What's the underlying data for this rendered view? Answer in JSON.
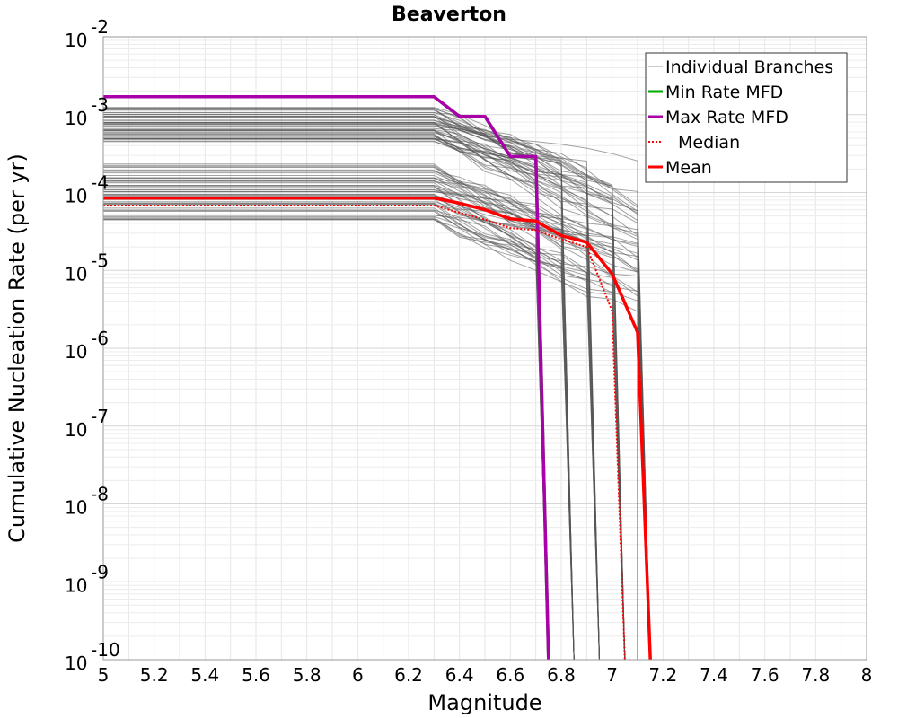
{
  "chart_data": {
    "type": "line",
    "title": "Beaverton",
    "xlabel": "Magnitude",
    "ylabel": "Cumulative Nucleation Rate (per yr)",
    "xlim": [
      5,
      8
    ],
    "ylim": [
      1e-10,
      0.01
    ],
    "yscale": "log",
    "grid": true,
    "legend_position": "top-right",
    "x_ticks": [
      "5",
      "5.2",
      "5.4",
      "5.6",
      "5.8",
      "6",
      "6.2",
      "6.4",
      "6.6",
      "6.8",
      "7",
      "7.2",
      "7.4",
      "7.6",
      "7.8",
      "8"
    ],
    "y_ticks": [
      {
        "base": "10",
        "exp": "-10"
      },
      {
        "base": "10",
        "exp": "-9"
      },
      {
        "base": "10",
        "exp": "-8"
      },
      {
        "base": "10",
        "exp": "-7"
      },
      {
        "base": "10",
        "exp": "-6"
      },
      {
        "base": "10",
        "exp": "-5"
      },
      {
        "base": "10",
        "exp": "-4"
      },
      {
        "base": "10",
        "exp": "-3"
      },
      {
        "base": "10",
        "exp": "-2"
      }
    ],
    "series": [
      {
        "name": "Min Rate MFD",
        "color": "#00aa00",
        "style": "solid",
        "x": [
          5.0,
          6.3,
          6.4,
          6.5,
          6.6,
          6.7,
          6.75
        ],
        "y": [
          0.0017,
          0.0017,
          0.00095,
          0.00095,
          0.00029,
          0.00029,
          1e-10
        ]
      },
      {
        "name": "Max Rate MFD",
        "color": "#aa00aa",
        "style": "solid",
        "x": [
          5.0,
          6.3,
          6.4,
          6.5,
          6.6,
          6.7,
          6.75
        ],
        "y": [
          0.0017,
          0.0017,
          0.00095,
          0.00095,
          0.00029,
          0.00029,
          1e-10
        ]
      },
      {
        "name": "Median",
        "color": "#ff0000",
        "style": "dotted",
        "x": [
          5.0,
          6.3,
          6.4,
          6.5,
          6.6,
          6.7,
          6.8,
          6.9,
          7.0,
          7.05
        ],
        "y": [
          6.8e-05,
          6.8e-05,
          5.5e-05,
          4.5e-05,
          3.5e-05,
          3.3e-05,
          2.5e-05,
          2e-05,
          3e-06,
          1e-10
        ]
      },
      {
        "name": "Mean",
        "color": "#ff0000",
        "style": "solid",
        "x": [
          5.0,
          6.3,
          6.4,
          6.5,
          6.6,
          6.7,
          6.8,
          6.9,
          7.0,
          7.1,
          7.15
        ],
        "y": [
          8.5e-05,
          8.5e-05,
          7.3e-05,
          6e-05,
          4.6e-05,
          4.3e-05,
          2.8e-05,
          2.3e-05,
          9e-06,
          1.6e-06,
          1e-10
        ]
      }
    ],
    "branches": {
      "name": "Individual Branches",
      "color": "#555555",
      "groups": [
        {
          "levels": [
            0.0012,
            0.0011,
            0.001,
            0.0009,
            0.0008,
            0.00075,
            0.0007,
            0.00065,
            0.0006,
            0.00055,
            0.0005,
            0.00046
          ]
        },
        {
          "levels": [
            0.00022,
            0.00019,
            0.00016,
            0.00014,
            0.00012,
            0.000105,
            9.5e-05,
            8e-05,
            7e-05,
            6e-05,
            5e-05,
            4.5e-05
          ]
        }
      ],
      "cutoffs": [
        6.75,
        6.85,
        6.95,
        7.05,
        7.1,
        7.15
      ]
    },
    "legend": [
      {
        "label": "Individual Branches",
        "color": "#999999",
        "style": "thin"
      },
      {
        "label": "Min Rate MFD",
        "color": "#00aa00",
        "style": "solid"
      },
      {
        "label": "Max Rate MFD",
        "color": "#aa00aa",
        "style": "solid"
      },
      {
        "label": "Median",
        "color": "#ff0000",
        "style": "dotted"
      },
      {
        "label": "Mean",
        "color": "#ff0000",
        "style": "solid"
      }
    ]
  }
}
